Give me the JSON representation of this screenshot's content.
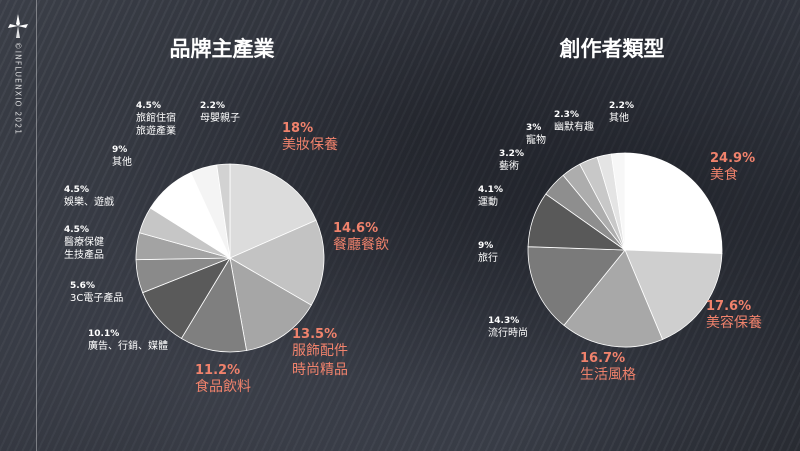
{
  "branding": {
    "copyright": "©INFLUENXIO 2021"
  },
  "colors": {
    "highlight": "#f0826c",
    "text": "#ffffff",
    "slice_stroke": "#ffffff"
  },
  "chart_data": [
    {
      "type": "pie",
      "title": "品牌主產業",
      "slices": [
        {
          "label": "美妝保養",
          "value": 18,
          "pct_text": "18%",
          "highlight": true,
          "color": "#dcdcdc"
        },
        {
          "label": "餐廳餐飲",
          "value": 14.6,
          "pct_text": "14.6%",
          "highlight": true,
          "color": "#c3c3c3"
        },
        {
          "label": "服飾配件 時尚精品",
          "value": 13.5,
          "pct_text": "13.5%",
          "highlight": true,
          "color": "#a6a6a6"
        },
        {
          "label": "食品飲料",
          "value": 11.2,
          "pct_text": "11.2%",
          "highlight": true,
          "color": "#7f7f7f"
        },
        {
          "label": "廣告、行銷、媒體",
          "value": 10.1,
          "pct_text": "10.1%",
          "highlight": false,
          "color": "#5a5a5a"
        },
        {
          "label": "3C電子產品",
          "value": 5.6,
          "pct_text": "5.6%",
          "highlight": false,
          "color": "#8a8a8a"
        },
        {
          "label": "醫療保健 生技產品",
          "value": 4.5,
          "pct_text": "4.5%",
          "highlight": false,
          "color": "#a3a3a3"
        },
        {
          "label": "娛樂、遊戲",
          "value": 4.5,
          "pct_text": "4.5%",
          "highlight": false,
          "color": "#c6c6c6"
        },
        {
          "label": "其他",
          "value": 9,
          "pct_text": "9%",
          "highlight": false,
          "color": "#ffffff"
        },
        {
          "label": "旅館住宿 旅遊產業",
          "value": 4.5,
          "pct_text": "4.5%",
          "highlight": false,
          "color": "#f4f4f4"
        },
        {
          "label": "母嬰親子",
          "value": 2.2,
          "pct_text": "2.2%",
          "highlight": false,
          "color": "#d2d2d2"
        }
      ]
    },
    {
      "type": "pie",
      "title": "創作者類型",
      "slices": [
        {
          "label": "美食",
          "value": 24.9,
          "pct_text": "24.9%",
          "highlight": true,
          "color": "#ffffff"
        },
        {
          "label": "美容保養",
          "value": 17.6,
          "pct_text": "17.6%",
          "highlight": true,
          "color": "#cfcfcf"
        },
        {
          "label": "生活風格",
          "value": 16.7,
          "pct_text": "16.7%",
          "highlight": true,
          "color": "#a8a8a8"
        },
        {
          "label": "流行時尚",
          "value": 14.3,
          "pct_text": "14.3%",
          "highlight": false,
          "color": "#7a7a7a"
        },
        {
          "label": "旅行",
          "value": 9,
          "pct_text": "9%",
          "highlight": false,
          "color": "#595959"
        },
        {
          "label": "運動",
          "value": 4.1,
          "pct_text": "4.1%",
          "highlight": false,
          "color": "#8e8e8e"
        },
        {
          "label": "藝術",
          "value": 3.2,
          "pct_text": "3.2%",
          "highlight": false,
          "color": "#adadad"
        },
        {
          "label": "寵物",
          "value": 3,
          "pct_text": "3%",
          "highlight": false,
          "color": "#c8c8c8"
        },
        {
          "label": "幽默有趣",
          "value": 2.3,
          "pct_text": "2.3%",
          "highlight": false,
          "color": "#e4e4e4"
        },
        {
          "label": "其他",
          "value": 2.2,
          "pct_text": "2.2%",
          "highlight": false,
          "color": "#f7f7f7"
        }
      ]
    }
  ]
}
